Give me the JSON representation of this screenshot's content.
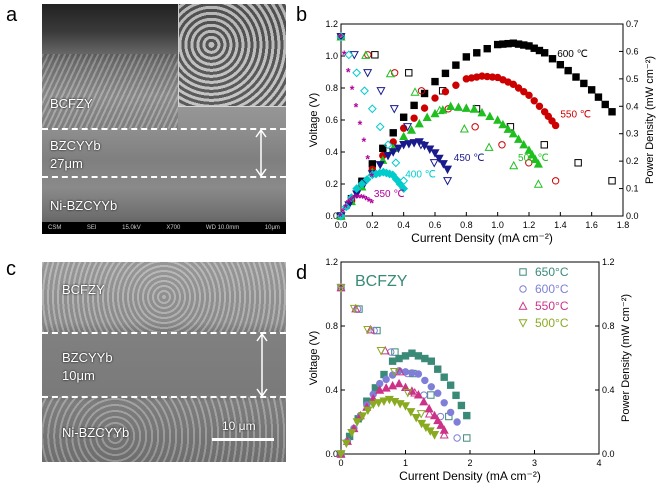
{
  "panel_a": {
    "label": "a",
    "layer_top": "BCFZY",
    "layer_mid": "BZCYYb",
    "layer_mid_thickness": "27μm",
    "layer_bottom": "Ni-BZCYYb",
    "status_bar": [
      "CSM",
      "SEI",
      "15.0kV",
      "X700",
      "WD 10.0mm",
      "10μm"
    ]
  },
  "panel_c": {
    "label": "c",
    "layer_top": "BCFZY",
    "layer_mid": "BZCYYb",
    "layer_mid_thickness": "10μm",
    "layer_bottom": "Ni-BZCYYb",
    "scale_bar": "10 μm"
  },
  "chart_data": [
    {
      "panel": "b",
      "type": "line",
      "xlabel": "Current Density (mA cm⁻²)",
      "ylabel_left": "Voltage (V)",
      "ylabel_right": "Power Density (mW cm⁻²)",
      "xlim": [
        0,
        1.8
      ],
      "ylim_left": [
        0,
        1.2
      ],
      "ylim_right": [
        0,
        0.7
      ],
      "x_ticks": [
        "0.0",
        "0.2",
        "0.4",
        "0.6",
        "0.8",
        "1.0",
        "1.2",
        "1.4",
        "1.6",
        "1.8"
      ],
      "y_left_ticks": [
        "0.0",
        "0.2",
        "0.4",
        "0.6",
        "0.8",
        "1.0",
        "1.2"
      ],
      "y_right_ticks": [
        "0.0",
        "0.1",
        "0.2",
        "0.3",
        "0.4",
        "0.5",
        "0.6",
        "0.7"
      ],
      "series": [
        {
          "name": "600 ℃",
          "color": "#000000",
          "marker": "square",
          "label_at": [
            1.38,
            0.58
          ],
          "iv": {
            "x": [
              0,
              1.73
            ],
            "y": [
              1.12,
              0.22
            ]
          },
          "pd": {
            "x": [
              0,
              0.2,
              0.4,
              0.6,
              0.8,
              1.0,
              1.1,
              1.2,
              1.3,
              1.45,
              1.6,
              1.73
            ],
            "y": [
              0,
              0.19,
              0.36,
              0.49,
              0.58,
              0.625,
              0.63,
              0.62,
              0.595,
              0.53,
              0.46,
              0.38
            ]
          }
        },
        {
          "name": "550 ℃",
          "color": "#cc0000",
          "marker": "circle",
          "label_at": [
            1.4,
            0.36
          ],
          "iv": {
            "x": [
              0,
              1.37
            ],
            "y": [
              1.12,
              0.22
            ]
          },
          "pd": {
            "x": [
              0,
              0.2,
              0.4,
              0.6,
              0.8,
              0.9,
              1.0,
              1.1,
              1.2,
              1.3,
              1.37
            ],
            "y": [
              0,
              0.17,
              0.32,
              0.43,
              0.5,
              0.51,
              0.505,
              0.48,
              0.44,
              0.38,
              0.33
            ]
          }
        },
        {
          "name": "500 ℃",
          "color": "#1fbf1f",
          "marker": "triangle-up",
          "label_at": [
            1.13,
            0.2
          ],
          "iv": {
            "x": [
              0,
              1.26
            ],
            "y": [
              1.12,
              0.2
            ]
          },
          "pd": {
            "x": [
              0,
              0.2,
              0.4,
              0.55,
              0.7,
              0.85,
              1.0,
              1.1,
              1.2,
              1.26
            ],
            "y": [
              0,
              0.16,
              0.29,
              0.36,
              0.4,
              0.39,
              0.35,
              0.3,
              0.24,
              0.19
            ]
          }
        },
        {
          "name": "450 ℃",
          "color": "#1a1a8c",
          "marker": "triangle-down",
          "label_at": [
            0.72,
            0.2
          ],
          "iv": {
            "x": [
              0,
              0.68
            ],
            "y": [
              1.12,
              0.22
            ]
          },
          "pd": {
            "x": [
              0,
              0.15,
              0.3,
              0.4,
              0.5,
              0.6,
              0.68
            ],
            "y": [
              0,
              0.12,
              0.22,
              0.26,
              0.27,
              0.23,
              0.17
            ]
          }
        },
        {
          "name": "400 ℃",
          "color": "#00cccc",
          "marker": "diamond",
          "label_at": [
            0.41,
            0.14
          ],
          "iv": {
            "x": [
              0,
              0.4
            ],
            "y": [
              1.12,
              0.22
            ]
          },
          "pd": {
            "x": [
              0,
              0.1,
              0.2,
              0.27,
              0.33,
              0.4
            ],
            "y": [
              0,
              0.1,
              0.15,
              0.16,
              0.15,
              0.1
            ]
          }
        },
        {
          "name": "350 ℃",
          "color": "#b0009a",
          "marker": "star",
          "label_at": [
            0.21,
            0.07
          ],
          "iv": {
            "x": [
              0,
              0.2
            ],
            "y": [
              1.12,
              0.25
            ]
          },
          "pd": {
            "x": [
              0,
              0.05,
              0.1,
              0.15,
              0.2
            ],
            "y": [
              0,
              0.05,
              0.07,
              0.065,
              0.05
            ]
          }
        }
      ]
    },
    {
      "panel": "d",
      "type": "line",
      "title": "BCFZY",
      "xlabel": "Current Density (mA cm⁻²)",
      "ylabel_left": "Voltage (V)",
      "ylabel_right": "Power Density (mW cm⁻²)",
      "xlim": [
        0,
        4
      ],
      "ylim_left": [
        0,
        1.2
      ],
      "ylim_right": [
        0,
        1.2
      ],
      "x_ticks": [
        "0",
        "1",
        "2",
        "3",
        "4"
      ],
      "y_left_ticks": [
        "0.0",
        "0.4",
        "0.8",
        "1.2"
      ],
      "y_right_ticks": [
        "0.0",
        "0.4",
        "0.8",
        "1.2"
      ],
      "legend_position": "top-right",
      "series": [
        {
          "name": "650°C",
          "color": "#3a8a78",
          "marker": "square",
          "iv": {
            "x": [
              0,
              1.95
            ],
            "y": [
              1.04,
              0.1
            ]
          },
          "pd": {
            "x": [
              0,
              0.4,
              0.8,
              1.1,
              1.4,
              1.7,
              1.95
            ],
            "y": [
              0,
              0.33,
              0.58,
              0.63,
              0.58,
              0.43,
              0.24
            ]
          }
        },
        {
          "name": "600°C",
          "color": "#7f7fd8",
          "marker": "circle",
          "iv": {
            "x": [
              0,
              1.8
            ],
            "y": [
              1.04,
              0.1
            ]
          },
          "pd": {
            "x": [
              0,
              0.3,
              0.6,
              0.9,
              1.2,
              1.5,
              1.8
            ],
            "y": [
              0,
              0.24,
              0.44,
              0.52,
              0.5,
              0.38,
              0.2
            ]
          }
        },
        {
          "name": "550°C",
          "color": "#cc3388",
          "marker": "triangle-up",
          "iv": {
            "x": [
              0,
              1.6
            ],
            "y": [
              1.04,
              0.12
            ]
          },
          "pd": {
            "x": [
              0,
              0.3,
              0.6,
              0.9,
              1.2,
              1.45,
              1.6
            ],
            "y": [
              0,
              0.24,
              0.4,
              0.44,
              0.37,
              0.24,
              0.15
            ]
          }
        },
        {
          "name": "500°C",
          "color": "#8aaa22",
          "marker": "triangle-down",
          "iv": {
            "x": [
              0,
              1.45
            ],
            "y": [
              1.04,
              0.12
            ]
          },
          "pd": {
            "x": [
              0,
              0.25,
              0.5,
              0.75,
              1.0,
              1.25,
              1.45
            ],
            "y": [
              0,
              0.2,
              0.31,
              0.34,
              0.3,
              0.19,
              0.12
            ]
          }
        }
      ]
    }
  ]
}
